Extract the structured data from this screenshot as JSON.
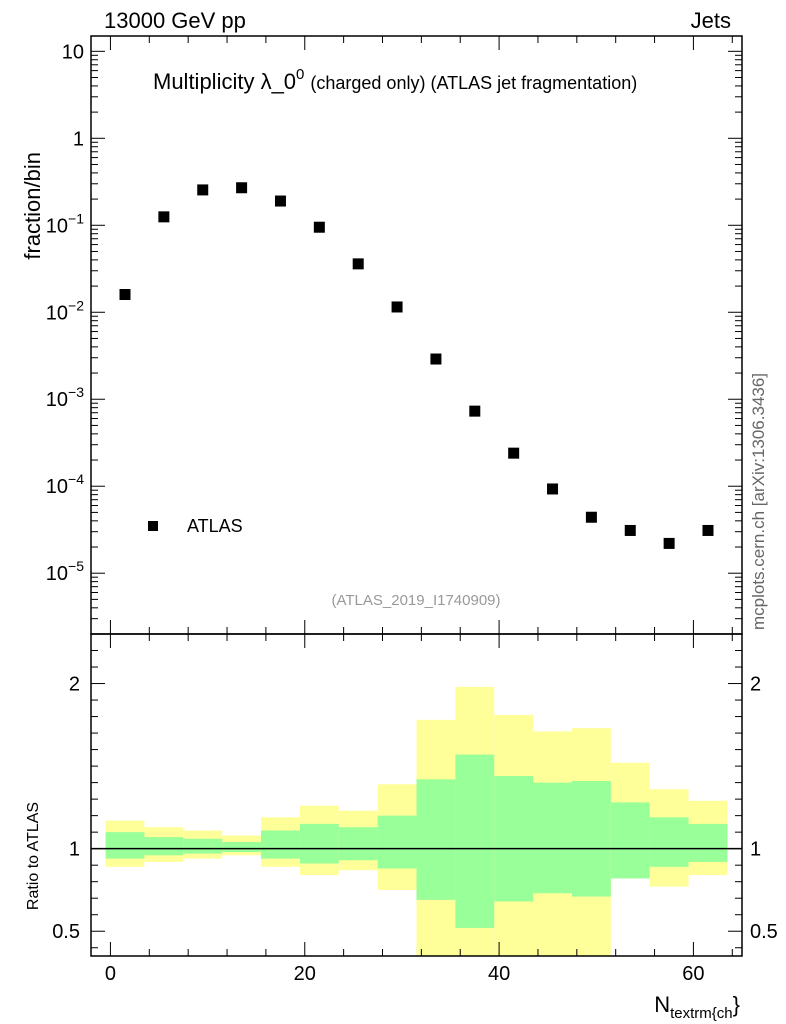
{
  "header": {
    "energy_label": "13000 GeV pp",
    "category_label": "Jets",
    "side_label": "mcplots.cern.ch [arXiv:1306.3436]"
  },
  "chart_data": [
    {
      "type": "scatter",
      "panel": "main",
      "title_main": "Multiplicity λ_0",
      "title_sup": "0",
      "title_sub": "(charged only) (ATLAS jet fragmentation)",
      "ylabel": "fraction/bin",
      "yscale": "log",
      "ylim": [
        2e-06,
        15
      ],
      "xlim": [
        -2,
        65
      ],
      "y_ticks": [
        {
          "value": 10,
          "label": "10"
        },
        {
          "value": 1,
          "label": "1"
        },
        {
          "value": 0.1,
          "base": "10",
          "exp": "−1"
        },
        {
          "value": 0.01,
          "base": "10",
          "exp": "−2"
        },
        {
          "value": 0.001,
          "base": "10",
          "exp": "−3"
        },
        {
          "value": 0.0001,
          "base": "10",
          "exp": "−4"
        },
        {
          "value": 1e-05,
          "base": "10",
          "exp": "−5"
        }
      ],
      "legend": {
        "label": "ATLAS",
        "position": "bottom-left"
      },
      "analysis_label": "(ATLAS_2019_I1740909)",
      "series": [
        {
          "name": "ATLAS",
          "x": [
            1.5,
            5.5,
            9.5,
            13.5,
            17.5,
            21.5,
            25.5,
            29.5,
            33.5,
            37.5,
            41.5,
            45.5,
            49.5,
            53.5,
            57.5,
            61.5
          ],
          "y": [
            0.016,
            0.125,
            0.255,
            0.27,
            0.19,
            0.095,
            0.036,
            0.0115,
            0.0029,
            0.00073,
            0.00024,
            9.3e-05,
            4.4e-05,
            3.1e-05,
            2.2e-05,
            3.1e-05
          ]
        }
      ]
    },
    {
      "type": "area",
      "panel": "ratio",
      "ylabel": "Ratio to ATLAS",
      "xlabel_main": "N",
      "xlabel_sub": "textrm{ch",
      "xlabel_tail": "}",
      "xlim": [
        -2,
        65
      ],
      "ylim": [
        0.35,
        2.3
      ],
      "x_ticks": [
        0,
        20,
        40,
        60
      ],
      "y_ticks": [
        0.5,
        1,
        2
      ],
      "bins": [
        -0.5,
        3.5,
        7.5,
        11.5,
        15.5,
        19.5,
        23.5,
        27.5,
        31.5,
        35.5,
        39.5,
        43.5,
        47.5,
        51.5,
        55.5,
        59.5,
        63.5
      ],
      "reference_line": 1,
      "series": [
        {
          "name": "total uncertainty",
          "color": "#ffff99",
          "low": [
            0.89,
            0.92,
            0.94,
            0.96,
            0.89,
            0.84,
            0.87,
            0.75,
            0.1,
            0.1,
            0.1,
            0.1,
            0.1,
            0.82,
            0.77,
            0.84
          ],
          "high": [
            1.17,
            1.13,
            1.11,
            1.08,
            1.19,
            1.26,
            1.23,
            1.39,
            1.78,
            1.98,
            1.81,
            1.71,
            1.73,
            1.52,
            1.36,
            1.29
          ]
        },
        {
          "name": "statistical uncertainty",
          "color": "#99ff99",
          "low": [
            0.94,
            0.96,
            0.97,
            0.98,
            0.94,
            0.91,
            0.93,
            0.88,
            0.69,
            0.52,
            0.68,
            0.73,
            0.71,
            0.82,
            0.89,
            0.92
          ],
          "high": [
            1.1,
            1.07,
            1.06,
            1.04,
            1.11,
            1.15,
            1.13,
            1.2,
            1.42,
            1.57,
            1.44,
            1.4,
            1.41,
            1.28,
            1.19,
            1.15
          ]
        }
      ]
    }
  ]
}
